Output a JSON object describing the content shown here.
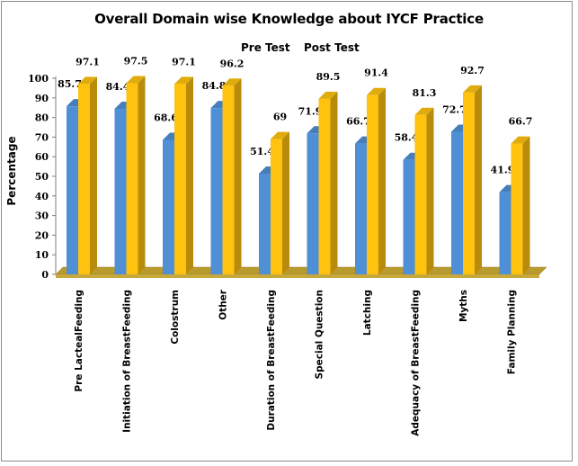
{
  "chart_data": {
    "type": "bar",
    "title": "Overall Domain wise Knowledge about IYCF Practice",
    "ylabel": "Percentage",
    "xlabel": "",
    "ylim": [
      0,
      100
    ],
    "yticks": [
      0,
      10,
      20,
      30,
      40,
      50,
      60,
      70,
      80,
      90,
      100
    ],
    "legend_placement": "top-center",
    "grid": false,
    "three_d": true,
    "categories": [
      "Pre LactealFeeding",
      "Initiation of BreastFeeding",
      "Colostrum",
      "Other",
      "Duration of BreastFeeding",
      "Special Question",
      "Latching",
      "Adequacy of BreastFeeding",
      "Myths",
      "Family Planning"
    ],
    "series": [
      {
        "name": "Pre Test",
        "color": "#4f8fd6",
        "values": [
          85.7,
          84.4,
          68.6,
          84.8,
          51.4,
          71.9,
          66.7,
          58.4,
          72.7,
          41.9
        ],
        "labels": [
          "85.7",
          "84.4",
          "68.6",
          "84.8",
          "51.4",
          "71.9",
          "66.7",
          "58.4",
          "72.7",
          "41.9"
        ]
      },
      {
        "name": "Post Test",
        "color": "#ffc20e",
        "values": [
          97.1,
          97.5,
          97.1,
          96.2,
          69,
          89.5,
          91.4,
          81.3,
          92.7,
          66.7
        ],
        "labels": [
          "97.1",
          "97.5",
          "97.1",
          "96.2",
          "69",
          "89.5",
          "91.4",
          "81.3",
          "92.7",
          "66.7"
        ]
      }
    ]
  }
}
